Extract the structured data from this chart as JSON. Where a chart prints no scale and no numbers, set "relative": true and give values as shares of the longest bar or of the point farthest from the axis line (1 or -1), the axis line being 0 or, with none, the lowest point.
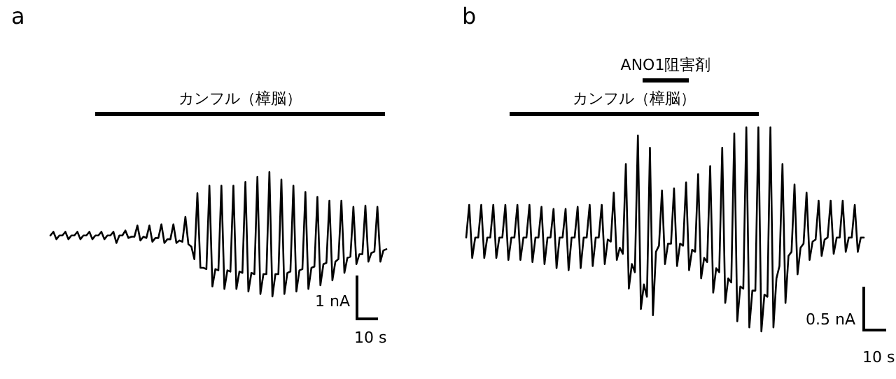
{
  "chart_data": [
    {
      "type": "line",
      "title": "a",
      "relative": true,
      "tick_labels": false,
      "color": "#000000",
      "categories": [
        null,
        null,
        null,
        null,
        null,
        null,
        null,
        null,
        null,
        null,
        null,
        null,
        null,
        null,
        null,
        null,
        null,
        null,
        null,
        null,
        null,
        null,
        null,
        null,
        null,
        null,
        null,
        null,
        null,
        null,
        null,
        null,
        null,
        null,
        null,
        null,
        null,
        null,
        null,
        null,
        null,
        null,
        null,
        null,
        null,
        null,
        null,
        null,
        null,
        null,
        null,
        null,
        null,
        null,
        null,
        null,
        null,
        null,
        null,
        null,
        null,
        null,
        null,
        null,
        null,
        null,
        null,
        null,
        null,
        null,
        null,
        null,
        null,
        null,
        null,
        null,
        null,
        null,
        null,
        null,
        null,
        null,
        null,
        null,
        null,
        null,
        null,
        null,
        null,
        null,
        null,
        null,
        null,
        null,
        null,
        null,
        null,
        null,
        null,
        null,
        null,
        null,
        null,
        null,
        null,
        null,
        null,
        null,
        null,
        null,
        null,
        null,
        null
      ],
      "values": [
        0.49,
        0.52,
        0.46,
        0.49,
        0.49,
        0.52,
        0.46,
        0.49,
        0.49,
        0.52,
        0.46,
        0.49,
        0.49,
        0.52,
        0.46,
        0.49,
        0.49,
        0.52,
        0.46,
        0.49,
        0.49,
        0.52,
        0.43,
        0.49,
        0.49,
        0.53,
        0.47,
        0.48,
        0.48,
        0.57,
        0.45,
        0.48,
        0.47,
        0.57,
        0.44,
        0.47,
        0.47,
        0.58,
        0.43,
        0.46,
        0.46,
        0.58,
        0.43,
        0.45,
        0.44,
        0.64,
        0.42,
        0.4,
        0.3,
        0.83,
        0.23,
        0.23,
        0.22,
        0.89,
        0.08,
        0.22,
        0.21,
        0.89,
        0.06,
        0.21,
        0.2,
        0.89,
        0.06,
        0.2,
        0.19,
        0.92,
        0.04,
        0.19,
        0.18,
        0.96,
        0.02,
        0.18,
        0.18,
        1,
        0,
        0.18,
        0.18,
        0.94,
        0.02,
        0.19,
        0.2,
        0.89,
        0.04,
        0.21,
        0.22,
        0.84,
        0.06,
        0.23,
        0.24,
        0.8,
        0.09,
        0.26,
        0.27,
        0.77,
        0.13,
        0.28,
        0.3,
        0.77,
        0.19,
        0.31,
        0.32,
        0.72,
        0.26,
        0.34,
        0.34,
        0.73,
        0.28,
        0.35,
        0.36,
        0.72,
        0.28,
        0.37,
        0.38
      ],
      "annotations": [
        "1 nA",
        "10 s",
        "カンフル（樟脳）"
      ]
    },
    {
      "type": "line",
      "title": "b",
      "relative": true,
      "tick_labels": false,
      "color": "#000000",
      "categories": [
        null,
        null,
        null,
        null,
        null,
        null,
        null,
        null,
        null,
        null,
        null,
        null,
        null,
        null,
        null,
        null,
        null,
        null,
        null,
        null,
        null,
        null,
        null,
        null,
        null,
        null,
        null,
        null,
        null,
        null,
        null,
        null,
        null,
        null,
        null,
        null,
        null,
        null,
        null,
        null,
        null,
        null,
        null,
        null,
        null,
        null,
        null,
        null,
        null,
        null,
        null,
        null,
        null,
        null,
        null,
        null,
        null,
        null,
        null,
        null,
        null,
        null,
        null,
        null,
        null,
        null,
        null,
        null,
        null,
        null,
        null,
        null,
        null,
        null,
        null,
        null,
        null,
        null,
        null,
        null,
        null,
        null,
        null,
        null,
        null,
        null,
        null,
        null,
        null,
        null,
        null,
        null,
        null,
        null,
        null,
        null,
        null,
        null,
        null,
        null,
        null,
        null,
        null,
        null,
        null,
        null,
        null,
        null,
        null,
        null,
        null,
        null,
        null,
        null,
        null,
        null,
        null,
        null,
        null,
        null,
        null,
        null,
        null,
        null,
        null,
        null,
        null,
        null,
        null,
        null,
        null,
        null,
        null
      ],
      "values": [
        0.46,
        0.62,
        0.36,
        0.46,
        0.46,
        0.62,
        0.36,
        0.46,
        0.46,
        0.62,
        0.36,
        0.46,
        0.46,
        0.62,
        0.35,
        0.46,
        0.46,
        0.62,
        0.35,
        0.46,
        0.46,
        0.62,
        0.34,
        0.46,
        0.46,
        0.61,
        0.33,
        0.46,
        0.46,
        0.6,
        0.31,
        0.46,
        0.46,
        0.6,
        0.3,
        0.46,
        0.46,
        0.61,
        0.31,
        0.46,
        0.46,
        0.62,
        0.32,
        0.46,
        0.46,
        0.62,
        0.33,
        0.45,
        0.44,
        0.68,
        0.35,
        0.41,
        0.38,
        0.82,
        0.21,
        0.33,
        0.29,
        0.96,
        0.11,
        0.23,
        0.17,
        0.9,
        0.08,
        0.39,
        0.42,
        0.69,
        0.33,
        0.43,
        0.43,
        0.7,
        0.32,
        0.43,
        0.42,
        0.73,
        0.3,
        0.4,
        0.39,
        0.77,
        0.26,
        0.36,
        0.34,
        0.81,
        0.19,
        0.31,
        0.29,
        0.9,
        0.14,
        0.26,
        0.24,
        0.97,
        0.05,
        0.22,
        0.21,
        1,
        0.02,
        0.2,
        0.2,
        1,
        0,
        0.18,
        0.17,
        1,
        0.02,
        0.26,
        0.32,
        0.82,
        0.14,
        0.37,
        0.39,
        0.72,
        0.28,
        0.41,
        0.43,
        0.68,
        0.35,
        0.44,
        0.45,
        0.64,
        0.37,
        0.45,
        0.46,
        0.64,
        0.38,
        0.46,
        0.46,
        0.64,
        0.39,
        0.46,
        0.46,
        0.62,
        0.39,
        0.46,
        0.46
      ],
      "annotations": [
        "0.5 nA",
        "10 s",
        "カンフル（樟脳）",
        "ANO1阻害剤"
      ]
    }
  ]
}
